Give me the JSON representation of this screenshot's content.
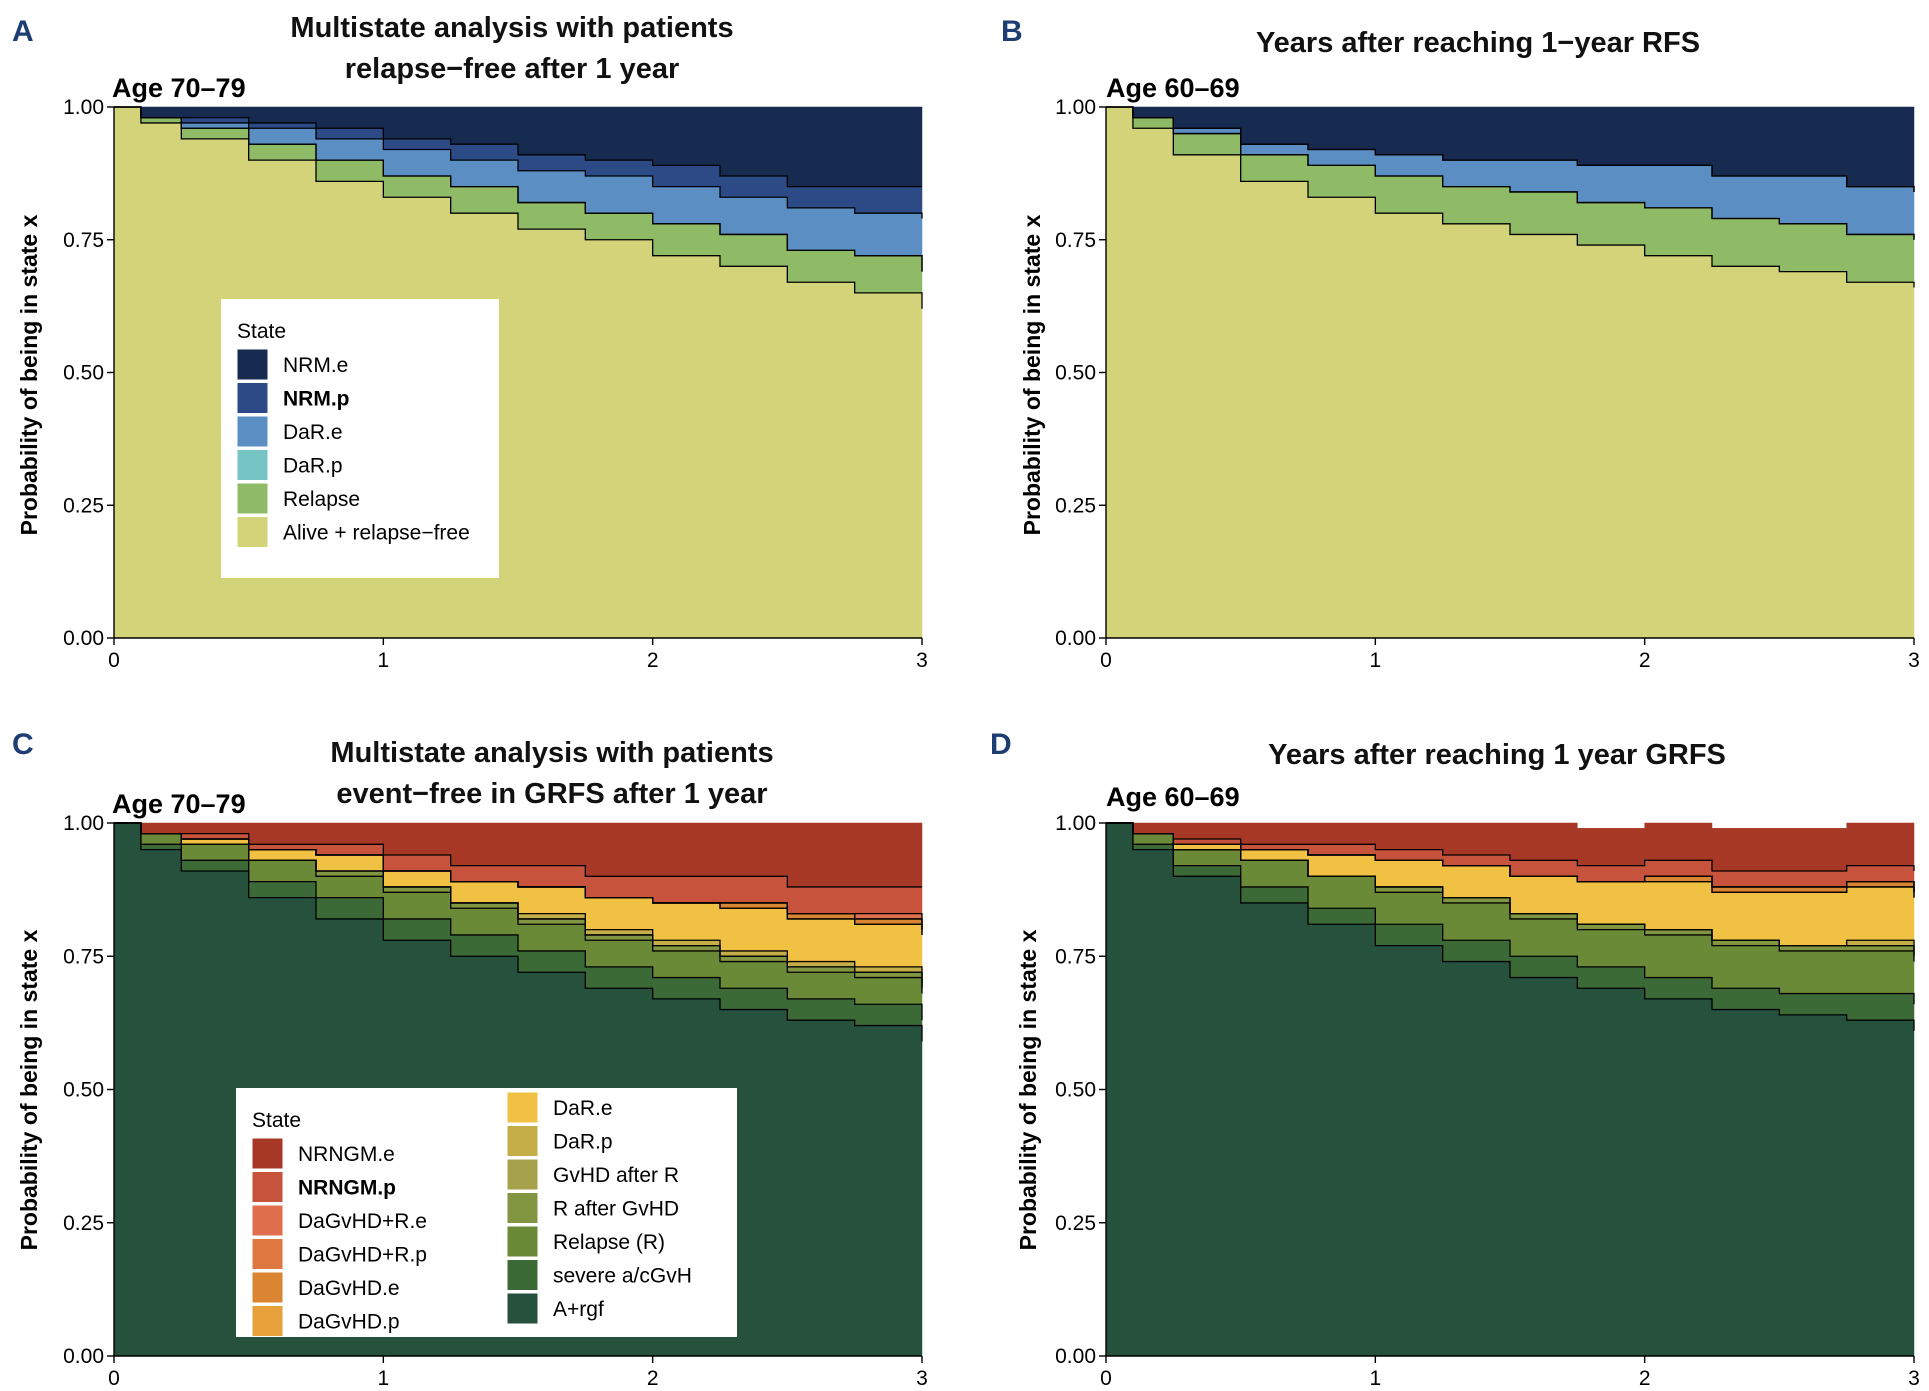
{
  "chart_data": [
    {
      "panel": "A",
      "type": "area",
      "stacked": true,
      "title_lines": [
        "Multistate analysis with patients",
        "relapse−free after 1 year"
      ],
      "subtitle": "Age 70–79",
      "ylabel": "Probability of being in state x",
      "xlabel": "",
      "xlim": [
        0,
        3
      ],
      "ylim": [
        0,
        1
      ],
      "xticks": [
        "0",
        "1",
        "2",
        "3"
      ],
      "yticks": [
        "0.00",
        "0.25",
        "0.50",
        "0.75",
        "1.00"
      ],
      "legend_title": "State",
      "legend_position": "center-left",
      "legend_columns": [
        [
          0,
          1,
          2,
          3,
          4,
          5
        ]
      ],
      "x": [
        0,
        0.1,
        0.25,
        0.5,
        0.75,
        1,
        1.25,
        1.5,
        1.75,
        2,
        2.25,
        2.5,
        2.75,
        3
      ],
      "series": [
        {
          "name": "Alive + relapse−free",
          "color": "#d3d47a",
          "bold": false,
          "values": [
            1.0,
            0.97,
            0.94,
            0.9,
            0.86,
            0.83,
            0.8,
            0.77,
            0.75,
            0.72,
            0.7,
            0.67,
            0.65,
            0.62
          ]
        },
        {
          "name": "Relapse",
          "color": "#8fbb66",
          "bold": false,
          "values": [
            0.0,
            0.01,
            0.02,
            0.03,
            0.04,
            0.04,
            0.05,
            0.05,
            0.05,
            0.06,
            0.06,
            0.06,
            0.07,
            0.07
          ]
        },
        {
          "name": "DaR.p",
          "color": "#76c4c4",
          "bold": false,
          "values": [
            0.0,
            0.0,
            0.0,
            0.0,
            0.0,
            0.0,
            0.0,
            0.0,
            0.0,
            0.0,
            0.0,
            0.0,
            0.0,
            0.0
          ]
        },
        {
          "name": "DaR.e",
          "color": "#5b8fc4",
          "bold": false,
          "values": [
            0.0,
            0.0,
            0.01,
            0.03,
            0.04,
            0.05,
            0.05,
            0.06,
            0.07,
            0.07,
            0.07,
            0.08,
            0.08,
            0.1
          ]
        },
        {
          "name": "NRM.p",
          "color": "#2c4a86",
          "bold": true,
          "values": [
            0.0,
            0.0,
            0.01,
            0.01,
            0.02,
            0.02,
            0.03,
            0.03,
            0.03,
            0.04,
            0.04,
            0.04,
            0.05,
            0.06
          ]
        },
        {
          "name": "NRM.e",
          "color": "#172a4f",
          "bold": false,
          "values": [
            0.0,
            0.02,
            0.02,
            0.03,
            0.04,
            0.06,
            0.07,
            0.09,
            0.1,
            0.11,
            0.13,
            0.15,
            0.15,
            0.15
          ]
        }
      ]
    },
    {
      "panel": "B",
      "type": "area",
      "stacked": true,
      "title_lines": [
        "Years after reaching 1−year RFS"
      ],
      "subtitle": "Age 60–69",
      "ylabel": "Probability of being in state x",
      "xlabel": "",
      "xlim": [
        0,
        3
      ],
      "ylim": [
        0,
        1
      ],
      "xticks": [
        "0",
        "1",
        "2",
        "3"
      ],
      "yticks": [
        "0.00",
        "0.25",
        "0.50",
        "0.75",
        "1.00"
      ],
      "legend_columns": [],
      "x": [
        0,
        0.1,
        0.25,
        0.5,
        0.75,
        1,
        1.25,
        1.5,
        1.75,
        2,
        2.25,
        2.5,
        2.75,
        3
      ],
      "series": [
        {
          "name": "Alive + relapse−free",
          "color": "#d3d47a",
          "values": [
            1.0,
            0.96,
            0.91,
            0.86,
            0.83,
            0.8,
            0.78,
            0.76,
            0.74,
            0.72,
            0.7,
            0.69,
            0.67,
            0.66
          ]
        },
        {
          "name": "Relapse",
          "color": "#8fbb66",
          "values": [
            0.0,
            0.02,
            0.04,
            0.05,
            0.06,
            0.07,
            0.07,
            0.08,
            0.08,
            0.09,
            0.09,
            0.09,
            0.09,
            0.09
          ]
        },
        {
          "name": "DaR.p",
          "color": "#76c4c4",
          "values": [
            0.0,
            0.0,
            0.0,
            0.0,
            0.0,
            0.0,
            0.0,
            0.0,
            0.0,
            0.0,
            0.0,
            0.0,
            0.0,
            0.0
          ]
        },
        {
          "name": "DaR.e",
          "color": "#5b8fc4",
          "values": [
            0.0,
            0.0,
            0.01,
            0.02,
            0.03,
            0.04,
            0.05,
            0.06,
            0.07,
            0.08,
            0.08,
            0.09,
            0.09,
            0.09
          ]
        },
        {
          "name": "NRM.p",
          "color": "#2c4a86",
          "values": [
            0.0,
            0.0,
            0.0,
            0.0,
            0.0,
            0.0,
            0.0,
            0.0,
            0.0,
            0.0,
            0.0,
            0.0,
            0.0,
            0.0
          ]
        },
        {
          "name": "NRM.e",
          "color": "#172a4f",
          "values": [
            0.0,
            0.02,
            0.04,
            0.07,
            0.08,
            0.09,
            0.1,
            0.1,
            0.11,
            0.11,
            0.13,
            0.13,
            0.15,
            0.16
          ]
        }
      ]
    },
    {
      "panel": "C",
      "type": "area",
      "stacked": true,
      "title_lines": [
        "Multistate analysis with patients",
        "event−free in GRFS after 1 year"
      ],
      "subtitle": "Age 70–79",
      "ylabel": "Probability of being in state x",
      "xlabel": "",
      "xlim": [
        0,
        3
      ],
      "ylim": [
        0,
        1
      ],
      "xticks": [
        "0",
        "1",
        "2",
        "3"
      ],
      "yticks": [
        "0.00",
        "0.25",
        "0.50",
        "0.75",
        "1.00"
      ],
      "legend_title": "State",
      "legend_position": "bottom-center",
      "legend_columns": [
        [
          0,
          1,
          2,
          3,
          4,
          5
        ],
        [
          6,
          7,
          8,
          9,
          10,
          11,
          12
        ]
      ],
      "x": [
        0,
        0.1,
        0.25,
        0.5,
        0.75,
        1,
        1.25,
        1.5,
        1.75,
        2,
        2.25,
        2.5,
        2.75,
        3
      ],
      "series": [
        {
          "name": "A+rgf",
          "color": "#26523d",
          "bold": false,
          "values": [
            1.0,
            0.95,
            0.91,
            0.86,
            0.82,
            0.78,
            0.75,
            0.72,
            0.69,
            0.67,
            0.65,
            0.63,
            0.62,
            0.59
          ]
        },
        {
          "name": "severe a/cGvH",
          "color": "#3b6a37",
          "bold": false,
          "values": [
            0.0,
            0.01,
            0.02,
            0.03,
            0.04,
            0.04,
            0.04,
            0.04,
            0.04,
            0.04,
            0.04,
            0.04,
            0.04,
            0.04
          ]
        },
        {
          "name": "Relapse (R)",
          "color": "#6b8a37",
          "bold": false,
          "values": [
            0.0,
            0.02,
            0.03,
            0.04,
            0.04,
            0.05,
            0.05,
            0.05,
            0.05,
            0.05,
            0.05,
            0.05,
            0.05,
            0.05
          ]
        },
        {
          "name": "R after GvHD",
          "color": "#829540",
          "bold": false,
          "values": [
            0.0,
            0.0,
            0.0,
            0.0,
            0.01,
            0.01,
            0.01,
            0.01,
            0.01,
            0.01,
            0.01,
            0.01,
            0.01,
            0.01
          ]
        },
        {
          "name": "GvHD after R",
          "color": "#a6a14b",
          "bold": false,
          "values": [
            0.0,
            0.0,
            0.0,
            0.0,
            0.0,
            0.0,
            0.0,
            0.0,
            0.0,
            0.0,
            0.0,
            0.0,
            0.0,
            0.0
          ]
        },
        {
          "name": "DaR.p",
          "color": "#c5ad48",
          "bold": false,
          "values": [
            0.0,
            0.0,
            0.0,
            0.0,
            0.0,
            0.0,
            0.0,
            0.01,
            0.01,
            0.01,
            0.01,
            0.01,
            0.01,
            0.01
          ]
        },
        {
          "name": "DaR.e",
          "color": "#f0c142",
          "bold": false,
          "values": [
            0.0,
            0.0,
            0.01,
            0.02,
            0.03,
            0.03,
            0.04,
            0.05,
            0.06,
            0.07,
            0.08,
            0.08,
            0.08,
            0.09
          ]
        },
        {
          "name": "DaGvHD.p",
          "color": "#e6a13a",
          "bold": false,
          "values": [
            0.0,
            0.0,
            0.0,
            0.0,
            0.0,
            0.0,
            0.0,
            0.0,
            0.0,
            0.0,
            0.0,
            0.0,
            0.0,
            0.0
          ]
        },
        {
          "name": "DaGvHD.e",
          "color": "#d98531",
          "bold": false,
          "values": [
            0.0,
            0.0,
            0.0,
            0.0,
            0.0,
            0.0,
            0.0,
            0.0,
            0.0,
            0.0,
            0.01,
            0.01,
            0.01,
            0.01
          ]
        },
        {
          "name": "DaGvHD+R.p",
          "color": "#de7840",
          "bold": false,
          "values": [
            0.0,
            0.0,
            0.0,
            0.0,
            0.0,
            0.0,
            0.0,
            0.0,
            0.0,
            0.0,
            0.0,
            0.0,
            0.0,
            0.0
          ]
        },
        {
          "name": "DaGvHD+R.e",
          "color": "#e06f4d",
          "bold": false,
          "values": [
            0.0,
            0.0,
            0.0,
            0.0,
            0.0,
            0.0,
            0.0,
            0.0,
            0.0,
            0.0,
            0.0,
            0.0,
            0.01,
            0.01
          ]
        },
        {
          "name": "NRNGM.p",
          "color": "#c8533d",
          "bold": true,
          "values": [
            0.0,
            0.0,
            0.01,
            0.01,
            0.02,
            0.03,
            0.03,
            0.04,
            0.04,
            0.05,
            0.05,
            0.05,
            0.05,
            0.07
          ]
        },
        {
          "name": "NRNGM.e",
          "color": "#a83826",
          "bold": false,
          "values": [
            0.0,
            0.02,
            0.02,
            0.04,
            0.04,
            0.06,
            0.08,
            0.08,
            0.1,
            0.1,
            0.1,
            0.12,
            0.12,
            0.11
          ]
        }
      ]
    },
    {
      "panel": "D",
      "type": "area",
      "stacked": true,
      "title_lines": [
        "Years after reaching 1 year GRFS"
      ],
      "subtitle": "Age 60–69",
      "ylabel": "Probability of being in state x",
      "xlabel": "",
      "xlim": [
        0,
        3
      ],
      "ylim": [
        0,
        1
      ],
      "xticks": [
        "0",
        "1",
        "2",
        "3"
      ],
      "yticks": [
        "0.00",
        "0.25",
        "0.50",
        "0.75",
        "1.00"
      ],
      "legend_columns": [],
      "x": [
        0,
        0.1,
        0.25,
        0.5,
        0.75,
        1,
        1.25,
        1.5,
        1.75,
        2,
        2.25,
        2.5,
        2.75,
        3
      ],
      "series": [
        {
          "name": "A+rgf",
          "color": "#26523d",
          "values": [
            1.0,
            0.95,
            0.9,
            0.85,
            0.81,
            0.77,
            0.74,
            0.71,
            0.69,
            0.67,
            0.65,
            0.64,
            0.63,
            0.61
          ]
        },
        {
          "name": "severe a/cGvH",
          "color": "#3b6a37",
          "values": [
            0.0,
            0.01,
            0.02,
            0.03,
            0.03,
            0.04,
            0.04,
            0.04,
            0.04,
            0.04,
            0.04,
            0.04,
            0.05,
            0.05
          ]
        },
        {
          "name": "Relapse (R)",
          "color": "#6b8a37",
          "values": [
            0.0,
            0.02,
            0.03,
            0.05,
            0.06,
            0.06,
            0.07,
            0.07,
            0.07,
            0.08,
            0.08,
            0.08,
            0.08,
            0.08
          ]
        },
        {
          "name": "R after GvHD",
          "color": "#829540",
          "values": [
            0.0,
            0.0,
            0.0,
            0.0,
            0.0,
            0.01,
            0.01,
            0.01,
            0.01,
            0.01,
            0.01,
            0.01,
            0.01,
            0.01
          ]
        },
        {
          "name": "GvHD after R",
          "color": "#a6a14b",
          "values": [
            0.0,
            0.0,
            0.0,
            0.0,
            0.0,
            0.0,
            0.0,
            0.0,
            0.0,
            0.0,
            0.0,
            0.0,
            0.0,
            0.0
          ]
        },
        {
          "name": "DaR.p",
          "color": "#c5ad48",
          "values": [
            0.0,
            0.0,
            0.0,
            0.0,
            0.0,
            0.0,
            0.0,
            0.0,
            0.0,
            0.0,
            0.0,
            0.0,
            0.01,
            0.01
          ]
        },
        {
          "name": "DaR.e",
          "color": "#f0c142",
          "values": [
            0.0,
            0.0,
            0.01,
            0.02,
            0.04,
            0.05,
            0.06,
            0.07,
            0.08,
            0.09,
            0.09,
            0.1,
            0.1,
            0.1
          ]
        },
        {
          "name": "DaGvHD.p",
          "color": "#e6a13a",
          "values": [
            0.0,
            0.0,
            0.0,
            0.0,
            0.0,
            0.0,
            0.0,
            0.0,
            0.0,
            0.0,
            0.0,
            0.0,
            0.0,
            0.0
          ]
        },
        {
          "name": "DaGvHD.e",
          "color": "#d98531",
          "values": [
            0.0,
            0.0,
            0.0,
            0.0,
            0.0,
            0.0,
            0.0,
            0.0,
            0.0,
            0.01,
            0.01,
            0.01,
            0.01,
            0.01
          ]
        },
        {
          "name": "DaGvHD+R.p",
          "color": "#de7840",
          "values": [
            0.0,
            0.0,
            0.0,
            0.0,
            0.0,
            0.0,
            0.0,
            0.0,
            0.0,
            0.0,
            0.0,
            0.0,
            0.0,
            0.0
          ]
        },
        {
          "name": "DaGvHD+R.e",
          "color": "#e06f4d",
          "values": [
            0.0,
            0.0,
            0.0,
            0.0,
            0.0,
            0.0,
            0.0,
            0.0,
            0.0,
            0.0,
            0.0,
            0.0,
            0.0,
            0.0
          ]
        },
        {
          "name": "NRNGM.p",
          "color": "#c8533d",
          "values": [
            0.0,
            0.0,
            0.01,
            0.01,
            0.02,
            0.02,
            0.02,
            0.03,
            0.03,
            0.03,
            0.03,
            0.03,
            0.03,
            0.04
          ]
        },
        {
          "name": "NRNGM.e",
          "color": "#a83826",
          "values": [
            0.0,
            0.02,
            0.03,
            0.04,
            0.04,
            0.05,
            0.06,
            0.07,
            0.07,
            0.07,
            0.08,
            0.08,
            0.08,
            0.09
          ]
        }
      ]
    }
  ]
}
